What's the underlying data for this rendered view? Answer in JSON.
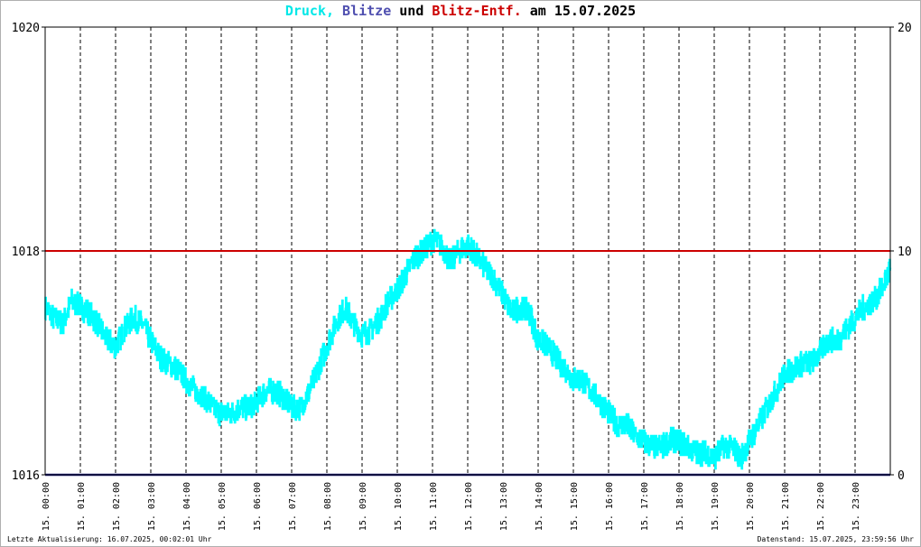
{
  "title": {
    "part1": "Druck,",
    "part2": "Blitze",
    "part3": "und",
    "part4": "Blitz-Entf.",
    "part5": "am 15.07.2025"
  },
  "colors": {
    "pressure": "#00ffff",
    "lightning": "#5050b0",
    "distance": "#cc0000",
    "text": "#000000"
  },
  "footer": {
    "left": "Letzte Aktualisierung: 16.07.2025, 00:02:01 Uhr",
    "right": "Datenstand: 15.07.2025, 23:59:56 Uhr"
  },
  "chart_data": {
    "type": "line",
    "x_tick_labels": [
      "15. 00:00",
      "15. 01:00",
      "15. 02:00",
      "15. 03:00",
      "15. 04:00",
      "15. 05:00",
      "15. 06:00",
      "15. 07:00",
      "15. 08:00",
      "15. 09:00",
      "15. 10:00",
      "15. 11:00",
      "15. 12:00",
      "15. 13:00",
      "15. 14:00",
      "15. 15:00",
      "15. 16:00",
      "15. 17:00",
      "15. 18:00",
      "15. 19:00",
      "15. 20:00",
      "15. 21:00",
      "15. 22:00",
      "15. 23:00"
    ],
    "y_left": {
      "range": [
        1016,
        1020
      ],
      "ticks": [
        "1020",
        "1018",
        "1016"
      ]
    },
    "y_right": {
      "range": [
        0,
        20
      ],
      "ticks": [
        "20",
        "10",
        "0"
      ]
    },
    "x_range_hours": [
      0,
      24
    ],
    "grid": "vertical dashed at each hour",
    "series": [
      {
        "color_key": "pressure",
        "unit": "hPa",
        "points": [
          [
            0.0,
            1017.5
          ],
          [
            0.25,
            1017.4
          ],
          [
            0.5,
            1017.35
          ],
          [
            0.75,
            1017.55
          ],
          [
            1.0,
            1017.5
          ],
          [
            1.25,
            1017.45
          ],
          [
            1.5,
            1017.35
          ],
          [
            1.75,
            1017.2
          ],
          [
            2.0,
            1017.15
          ],
          [
            2.25,
            1017.3
          ],
          [
            2.5,
            1017.4
          ],
          [
            2.75,
            1017.35
          ],
          [
            3.0,
            1017.2
          ],
          [
            3.25,
            1017.05
          ],
          [
            3.5,
            1017.0
          ],
          [
            3.75,
            1016.95
          ],
          [
            4.0,
            1016.85
          ],
          [
            4.25,
            1016.75
          ],
          [
            4.5,
            1016.7
          ],
          [
            4.75,
            1016.6
          ],
          [
            5.0,
            1016.55
          ],
          [
            5.25,
            1016.55
          ],
          [
            5.5,
            1016.6
          ],
          [
            5.75,
            1016.6
          ],
          [
            6.0,
            1016.65
          ],
          [
            6.25,
            1016.75
          ],
          [
            6.5,
            1016.75
          ],
          [
            6.75,
            1016.7
          ],
          [
            7.0,
            1016.6
          ],
          [
            7.25,
            1016.6
          ],
          [
            7.5,
            1016.75
          ],
          [
            7.75,
            1016.95
          ],
          [
            8.0,
            1017.15
          ],
          [
            8.25,
            1017.35
          ],
          [
            8.5,
            1017.5
          ],
          [
            8.75,
            1017.35
          ],
          [
            9.0,
            1017.25
          ],
          [
            9.25,
            1017.3
          ],
          [
            9.5,
            1017.4
          ],
          [
            9.75,
            1017.55
          ],
          [
            10.0,
            1017.65
          ],
          [
            10.25,
            1017.8
          ],
          [
            10.5,
            1017.95
          ],
          [
            10.75,
            1018.0
          ],
          [
            11.0,
            1018.1
          ],
          [
            11.25,
            1018.05
          ],
          [
            11.5,
            1017.9
          ],
          [
            11.75,
            1018.0
          ],
          [
            12.0,
            1018.05
          ],
          [
            12.25,
            1017.95
          ],
          [
            12.5,
            1017.85
          ],
          [
            12.75,
            1017.75
          ],
          [
            13.0,
            1017.6
          ],
          [
            13.25,
            1017.45
          ],
          [
            13.5,
            1017.5
          ],
          [
            13.75,
            1017.45
          ],
          [
            14.0,
            1017.2
          ],
          [
            14.25,
            1017.15
          ],
          [
            14.5,
            1017.05
          ],
          [
            14.75,
            1016.95
          ],
          [
            15.0,
            1016.85
          ],
          [
            15.25,
            1016.85
          ],
          [
            15.5,
            1016.75
          ],
          [
            15.75,
            1016.65
          ],
          [
            16.0,
            1016.55
          ],
          [
            16.25,
            1016.45
          ],
          [
            16.5,
            1016.45
          ],
          [
            16.75,
            1016.35
          ],
          [
            17.0,
            1016.3
          ],
          [
            17.25,
            1016.25
          ],
          [
            17.5,
            1016.25
          ],
          [
            17.75,
            1016.3
          ],
          [
            18.0,
            1016.3
          ],
          [
            18.25,
            1016.25
          ],
          [
            18.5,
            1016.2
          ],
          [
            18.75,
            1016.2
          ],
          [
            19.0,
            1016.15
          ],
          [
            19.25,
            1016.25
          ],
          [
            19.5,
            1016.25
          ],
          [
            19.75,
            1016.15
          ],
          [
            20.0,
            1016.3
          ],
          [
            20.25,
            1016.45
          ],
          [
            20.5,
            1016.6
          ],
          [
            20.75,
            1016.75
          ],
          [
            21.0,
            1016.9
          ],
          [
            21.25,
            1016.95
          ],
          [
            21.5,
            1017.0
          ],
          [
            21.75,
            1017.0
          ],
          [
            22.0,
            1017.1
          ],
          [
            22.25,
            1017.2
          ],
          [
            22.5,
            1017.2
          ],
          [
            22.75,
            1017.3
          ],
          [
            23.0,
            1017.4
          ],
          [
            23.25,
            1017.5
          ],
          [
            23.5,
            1017.55
          ],
          [
            23.75,
            1017.65
          ],
          [
            24.0,
            1017.85
          ]
        ]
      },
      {
        "color_key": "distance",
        "unit": "km",
        "axis": "right",
        "points": [
          [
            0,
            10
          ],
          [
            24,
            10
          ]
        ]
      },
      {
        "color_key": "lightning",
        "unit": "count",
        "axis": "right",
        "points": [
          [
            0,
            0
          ],
          [
            24,
            0
          ]
        ]
      }
    ]
  }
}
